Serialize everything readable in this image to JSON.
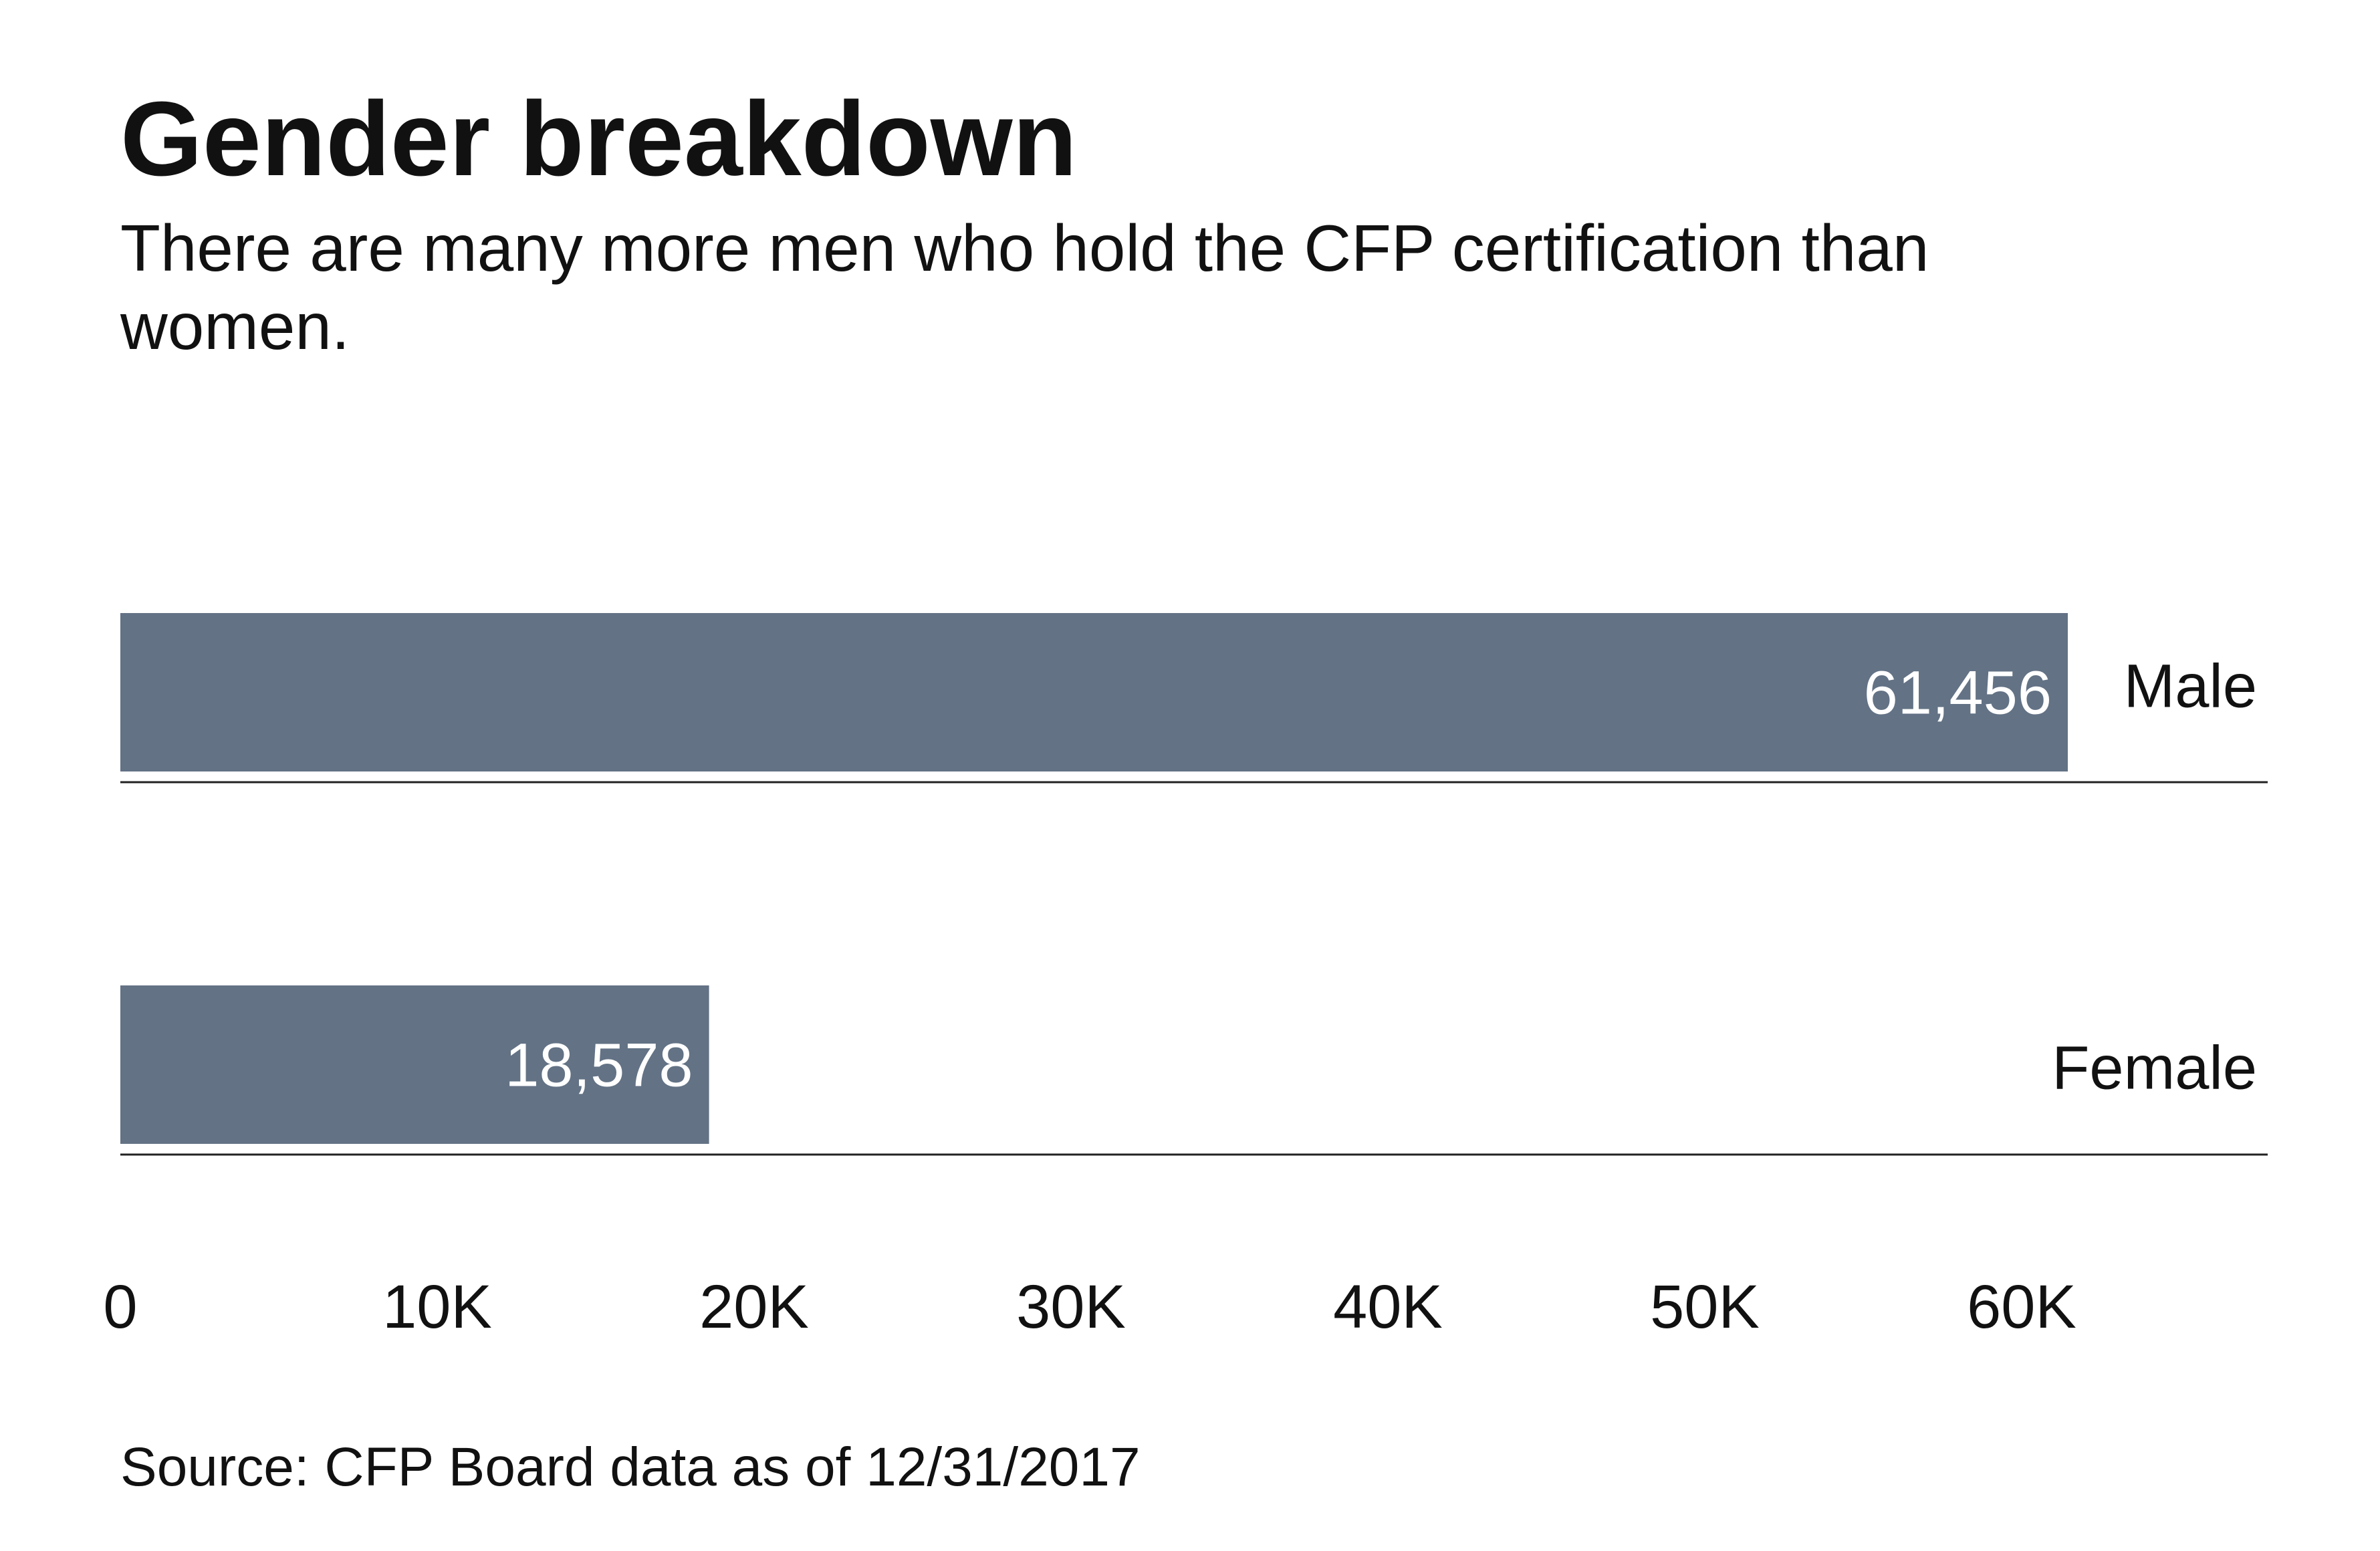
{
  "chart_data": {
    "type": "bar",
    "orientation": "horizontal",
    "title": "Gender breakdown",
    "subtitle_lines": [
      "There are many more men who hold the CFP certification than",
      "women."
    ],
    "categories": [
      "Male",
      "Female"
    ],
    "values": [
      61456,
      18578
    ],
    "value_labels": [
      "61,456",
      "18,578"
    ],
    "xlim": [
      0,
      67000
    ],
    "ticks": [
      0,
      10000,
      20000,
      30000,
      40000,
      50000,
      60000
    ],
    "tick_labels": [
      "0",
      "10K",
      "20K",
      "30K",
      "40K",
      "50K",
      "60K"
    ],
    "source": "Source: CFP Board data as of 12/31/2017",
    "bar_color": "#637285",
    "grid": false
  }
}
